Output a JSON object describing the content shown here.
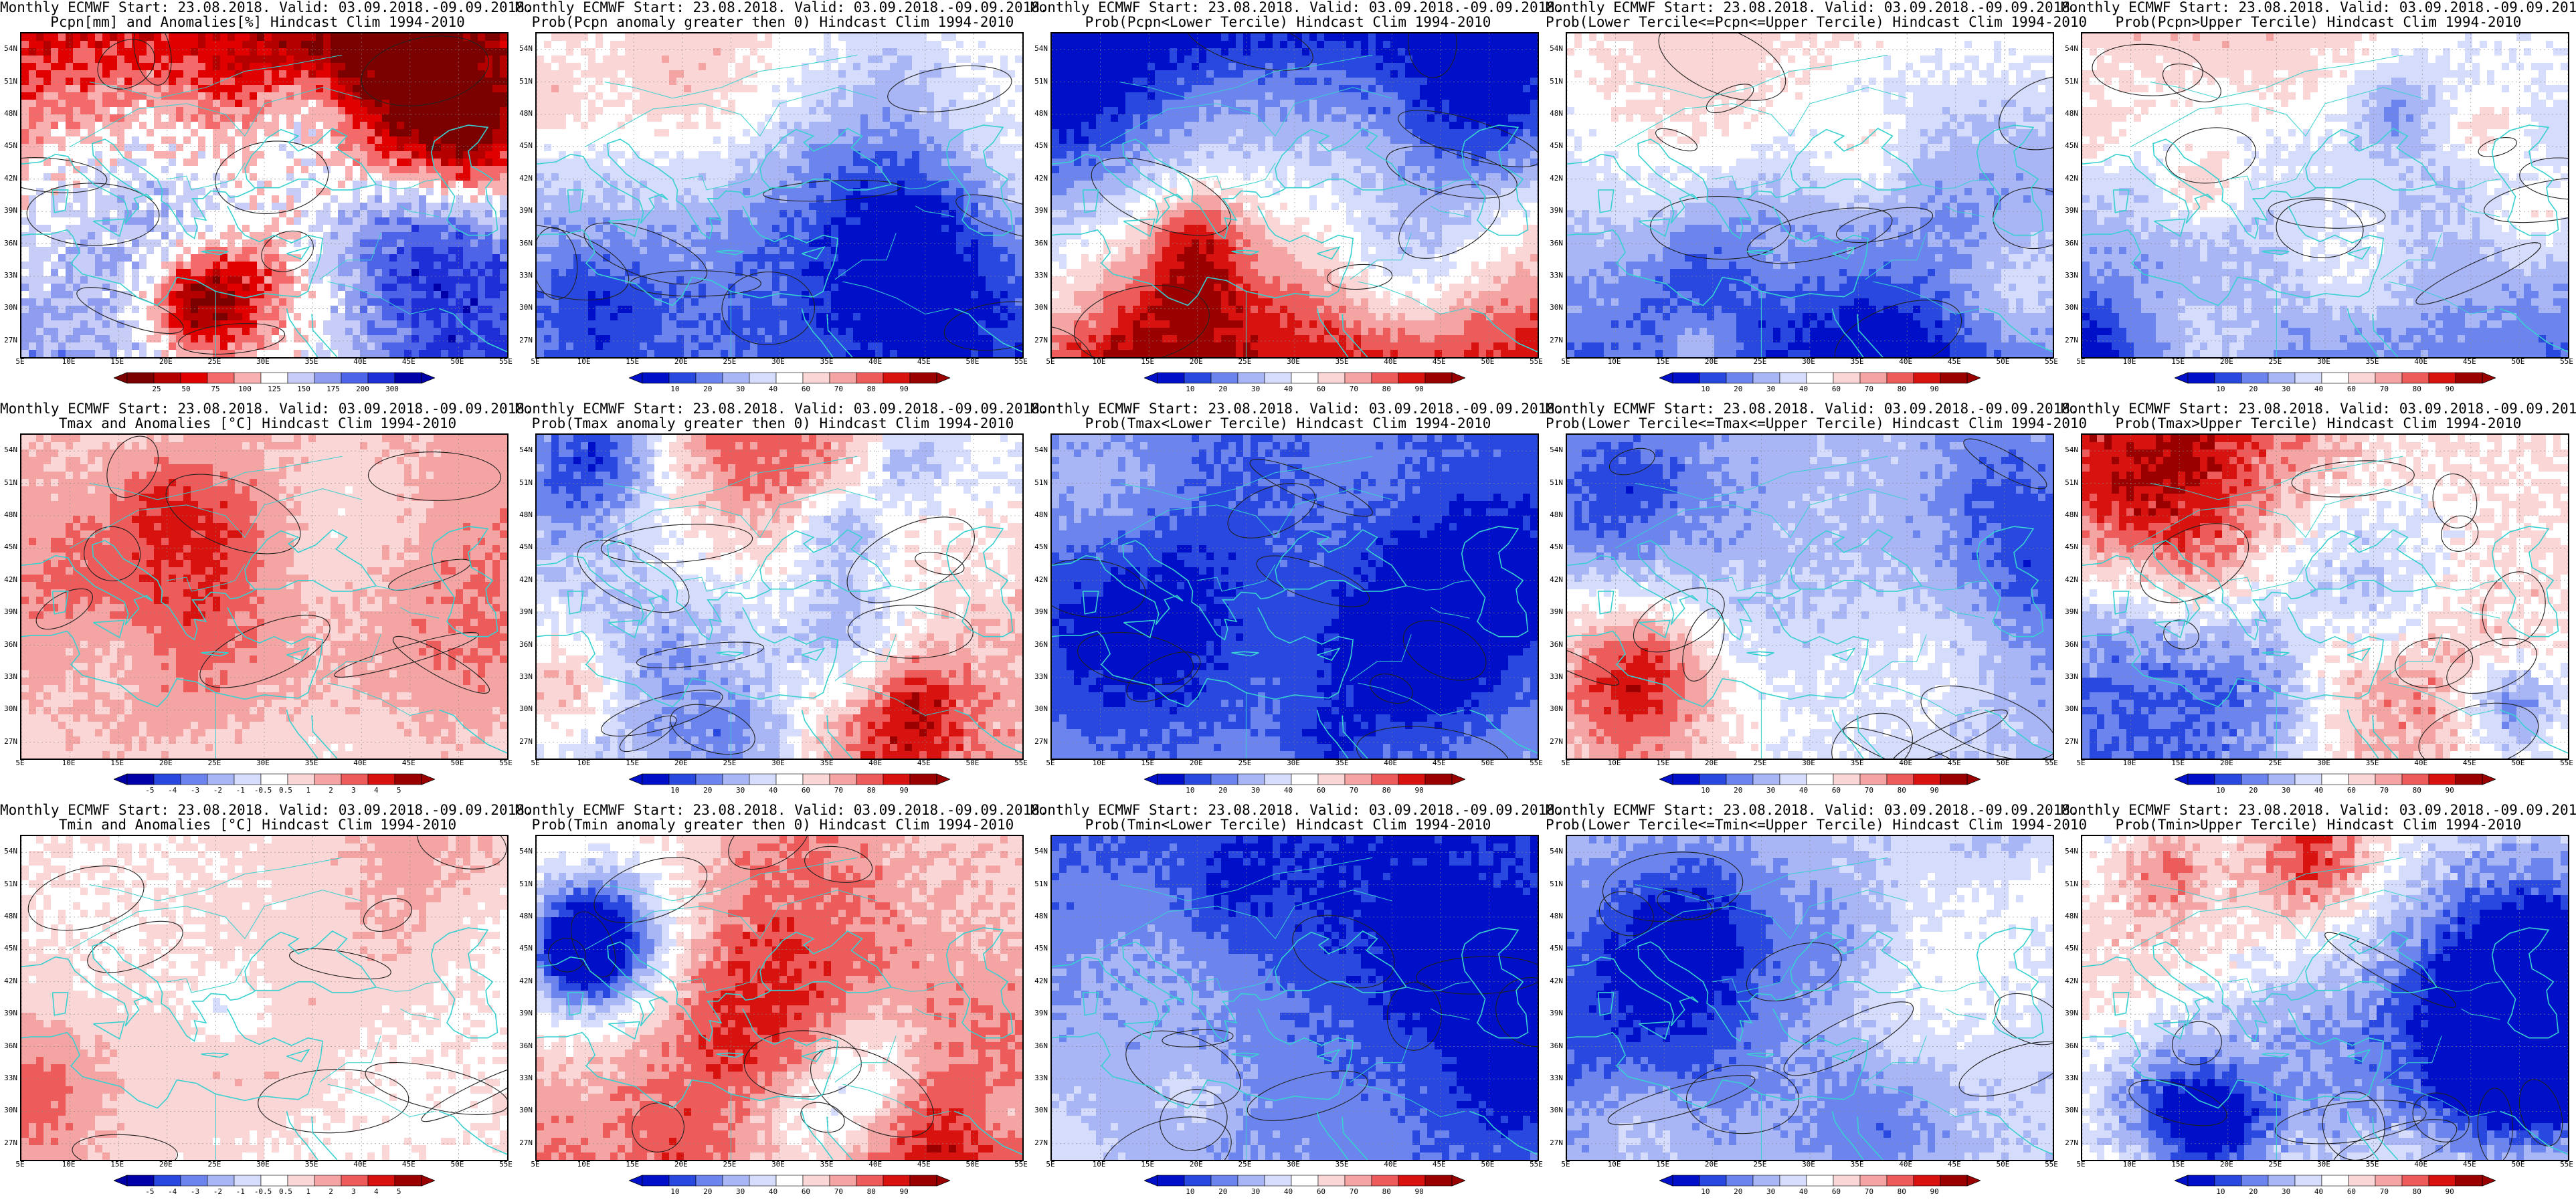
{
  "page": {
    "title_line1": "Monthly ECMWF Start: 23.08.2018. Valid: 03.09.2018.-09.09.2018."
  },
  "map": {
    "lat_ticks": [
      "54N",
      "51N",
      "48N",
      "45N",
      "42N",
      "39N",
      "36N",
      "33N",
      "30N",
      "27N"
    ],
    "lon_ticks": [
      "5E",
      "10E",
      "15E",
      "20E",
      "25E",
      "30E",
      "35E",
      "40E",
      "45E",
      "50E",
      "55E"
    ],
    "lon_range": [
      5,
      55
    ],
    "lat_range": [
      25.5,
      55.5
    ],
    "coastline_color": "#38d0d0",
    "contour_color": "#222222"
  },
  "colors": {
    "precip_anom": [
      "#7b0000",
      "#b50000",
      "#e00000",
      "#f46a6a",
      "#f8b0b0",
      "#ffffff",
      "#c7cdf7",
      "#8f9df0",
      "#4e64e8",
      "#1f2fd8",
      "#0000a8"
    ],
    "prob": [
      "#0010c8",
      "#2848e0",
      "#6c85ee",
      "#a9b6f6",
      "#d6dcfb",
      "#ffffff",
      "#fbd6d6",
      "#f5a4a4",
      "#ee5b5b",
      "#d8120f",
      "#9b0000"
    ],
    "temp_anom": [
      "#0000a8",
      "#2848e0",
      "#6c85ee",
      "#a9b6f6",
      "#d6dcfb",
      "#ffffff",
      "#fbd6d6",
      "#f5a4a4",
      "#ee5b5b",
      "#d8120f",
      "#9b0000"
    ]
  },
  "rows": [
    {
      "variable": "Pcpn",
      "panels": [
        {
          "title_line2": "Pcpn[mm] and Anomalies[%] Hindcast Clim 1994-2010",
          "scale": "precip_anom",
          "cbar_ticks": [
            "25",
            "50",
            "75",
            "100",
            "125",
            "150",
            "175",
            "200",
            "300"
          ],
          "field": {
            "bias": -0.15,
            "south": 0.55,
            "north": 0.1,
            "east": 0.1,
            "noise": 0.9,
            "seed": 11
          }
        },
        {
          "title_line2": "Prob(Pcpn anomaly greater then 0) Hindcast Clim 1994-2010",
          "scale": "prob",
          "cbar_ticks": [
            "10",
            "20",
            "30",
            "40",
            "60",
            "70",
            "80",
            "90"
          ],
          "field": {
            "bias": -0.35,
            "south": -0.35,
            "north": -0.05,
            "east": -0.1,
            "noise": 0.55,
            "seed": 12
          }
        },
        {
          "title_line2": "Prob(Pcpn<Lower Tercile) Hindcast Clim 1994-2010",
          "scale": "prob",
          "cbar_ticks": [
            "10",
            "20",
            "30",
            "40",
            "60",
            "70",
            "80",
            "90"
          ],
          "field": {
            "bias": -0.05,
            "south": 0.85,
            "north": -0.25,
            "east": 0.2,
            "noise": 0.55,
            "seed": 13
          }
        },
        {
          "title_line2": "Prob(Lower Tercile<=Pcpn<=Upper Tercile) Hindcast Clim 1994-2010",
          "scale": "prob",
          "cbar_ticks": [
            "10",
            "20",
            "30",
            "40",
            "60",
            "70",
            "80",
            "90"
          ],
          "field": {
            "bias": -0.35,
            "south": -0.45,
            "north": -0.05,
            "east": -0.05,
            "noise": 0.5,
            "seed": 14
          }
        },
        {
          "title_line2": "Prob(Pcpn>Upper Tercile) Hindcast Clim 1994-2010",
          "scale": "prob",
          "cbar_ticks": [
            "10",
            "20",
            "30",
            "40",
            "60",
            "70",
            "80",
            "90"
          ],
          "field": {
            "bias": -0.35,
            "south": -0.4,
            "north": -0.15,
            "east": -0.1,
            "noise": 0.5,
            "seed": 15
          }
        }
      ]
    },
    {
      "variable": "Tmax",
      "panels": [
        {
          "title_line2": "Tmax and Anomalies [°C] Hindcast Clim 1994-2010",
          "scale": "temp_anom",
          "cbar_ticks": [
            "-5",
            "-4",
            "-3",
            "-2",
            "-1",
            "-0.5",
            "0.5",
            "1",
            "2",
            "3",
            "4",
            "5"
          ],
          "field": {
            "bias": 0.15,
            "south": -0.1,
            "north": 0.25,
            "east": 0.05,
            "noise": 0.45,
            "seed": 21
          }
        },
        {
          "title_line2": "Prob(Tmax anomaly greater then 0) Hindcast Clim 1994-2010",
          "scale": "prob",
          "cbar_ticks": [
            "10",
            "20",
            "30",
            "40",
            "60",
            "70",
            "80",
            "90"
          ],
          "field": {
            "bias": 0.15,
            "south": 0.1,
            "north": 0.35,
            "east": 0.25,
            "noise": 0.75,
            "seed": 22
          }
        },
        {
          "title_line2": "Prob(Tmax<Lower Tercile) Hindcast Clim 1994-2010",
          "scale": "prob",
          "cbar_ticks": [
            "10",
            "20",
            "30",
            "40",
            "60",
            "70",
            "80",
            "90"
          ],
          "field": {
            "bias": -0.55,
            "south": 0.1,
            "north": -0.1,
            "east": -0.1,
            "noise": 0.45,
            "seed": 23
          }
        },
        {
          "title_line2": "Prob(Lower Tercile<=Tmax<=Upper Tercile) Hindcast Clim 1994-2010",
          "scale": "prob",
          "cbar_ticks": [
            "10",
            "20",
            "30",
            "40",
            "60",
            "70",
            "80",
            "90"
          ],
          "field": {
            "bias": -0.2,
            "south": 0.05,
            "north": -0.2,
            "east": -0.05,
            "noise": 0.55,
            "seed": 24
          }
        },
        {
          "title_line2": "Prob(Tmax>Upper Tercile) Hindcast Clim 1994-2010",
          "scale": "prob",
          "cbar_ticks": [
            "10",
            "20",
            "30",
            "40",
            "60",
            "70",
            "80",
            "90"
          ],
          "field": {
            "bias": -0.05,
            "south": 0.05,
            "north": 0.3,
            "east": 0.05,
            "noise": 0.85,
            "seed": 25
          }
        }
      ]
    },
    {
      "variable": "Tmin",
      "panels": [
        {
          "title_line2": "Tmin and Anomalies [°C] Hindcast Clim 1994-2010",
          "scale": "temp_anom",
          "cbar_ticks": [
            "-5",
            "-4",
            "-3",
            "-2",
            "-1",
            "-0.5",
            "0.5",
            "1",
            "2",
            "3",
            "4",
            "5"
          ],
          "field": {
            "bias": 0.12,
            "south": 0.05,
            "north": 0.1,
            "east": -0.05,
            "noise": 0.4,
            "seed": 31
          }
        },
        {
          "title_line2": "Prob(Tmin anomaly greater then 0) Hindcast Clim 1994-2010",
          "scale": "prob",
          "cbar_ticks": [
            "10",
            "20",
            "30",
            "40",
            "60",
            "70",
            "80",
            "90"
          ],
          "field": {
            "bias": 0.3,
            "south": 0.2,
            "north": 0.2,
            "east": 0.0,
            "noise": 0.6,
            "seed": 32
          }
        },
        {
          "title_line2": "Prob(Tmin<Lower Tercile) Hindcast Clim 1994-2010",
          "scale": "prob",
          "cbar_ticks": [
            "10",
            "20",
            "30",
            "40",
            "60",
            "70",
            "80",
            "90"
          ],
          "field": {
            "bias": -0.6,
            "south": 0.1,
            "north": -0.1,
            "east": 0.0,
            "noise": 0.4,
            "seed": 33
          }
        },
        {
          "title_line2": "Prob(Lower Tercile<=Tmin<=Upper Tercile) Hindcast Clim 1994-2010",
          "scale": "prob",
          "cbar_ticks": [
            "10",
            "20",
            "30",
            "40",
            "60",
            "70",
            "80",
            "90"
          ],
          "field": {
            "bias": -0.25,
            "south": 0.0,
            "north": -0.15,
            "east": -0.05,
            "noise": 0.5,
            "seed": 34
          }
        },
        {
          "title_line2": "Prob(Tmin>Upper Tercile) Hindcast Clim 1994-2010",
          "scale": "prob",
          "cbar_ticks": [
            "10",
            "20",
            "30",
            "40",
            "60",
            "70",
            "80",
            "90"
          ],
          "field": {
            "bias": -0.05,
            "south": 0.15,
            "north": 0.15,
            "east": 0.1,
            "noise": 0.85,
            "seed": 35
          }
        }
      ]
    }
  ]
}
